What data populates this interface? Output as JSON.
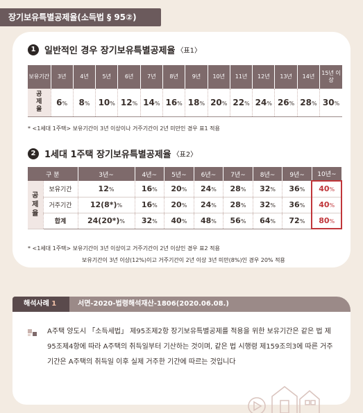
{
  "header": {
    "title": "장기보유특별공제율(소득법 § 95②)"
  },
  "section1": {
    "num": "1",
    "title": "일반적인 경우 장기보유특별공제율",
    "ref": "〈표1〉",
    "table": {
      "corner": "보유기간",
      "periods": [
        "3년",
        "4년",
        "5년",
        "6년",
        "7년",
        "8년",
        "9년",
        "10년",
        "11년",
        "12년",
        "13년",
        "14년",
        "15년 이상"
      ],
      "row_label": "공제율",
      "rates": [
        6,
        8,
        10,
        12,
        14,
        16,
        18,
        20,
        22,
        24,
        26,
        28,
        30
      ],
      "unit": "%"
    },
    "note": "* <1세대 1주택> 보유기간이 3년 이상이나 거주기간이 2년 미만인 경우 표1 적용"
  },
  "section2": {
    "num": "2",
    "title": "1세대 1주택 장기보유특별공제율",
    "ref": "〈표2〉",
    "table": {
      "corner": "구 분",
      "periods": [
        "3년~",
        "4년~",
        "5년~",
        "6년~",
        "7년~",
        "8년~",
        "9년~",
        "10년~"
      ],
      "side_label": "공제율",
      "rows": [
        {
          "label": "보유기간",
          "values": [
            "12",
            "16",
            "20",
            "24",
            "28",
            "32",
            "36",
            "40"
          ]
        },
        {
          "label": "거주기간",
          "values": [
            "12(8*)",
            "16",
            "20",
            "24",
            "28",
            "32",
            "36",
            "40"
          ]
        },
        {
          "label": "합계",
          "values": [
            "24(20*)",
            "32",
            "40",
            "48",
            "56",
            "64",
            "72",
            "80"
          ]
        }
      ],
      "unit": "%"
    },
    "note1": "* <1세대 1주택> 보유기간이 3년 이상이고 거주기간이 2년 이상인 경우 표2 적용",
    "note2": "보유기간이 3년 이상(12%)이고 거주기간이 2년 이상 3년 미만(8%)인 경우 20% 적용"
  },
  "case": {
    "tag_prefix": "해석사례",
    "tag_num": "1",
    "ref": "서면-2020-법령해석재산-1806(2020.06.08.)",
    "body": "A주택 양도시 「소득세법」 제95조제2항 장기보유특별공제를 적용을 위한 보유기간은 같은 법 제95조제4항에 따라 A주택의 취득일부터 기산하는 것이며, 같은 법 시행령 제159조의3에 따른 거주기간은 A주택의 취득일 이후 실제 거주한 기간에 따르는 것입니다"
  },
  "colors": {
    "header_bg": "#6b5a5c",
    "table_head": "#7e6a6b",
    "highlight": "#c0363a",
    "page_bg": "#f3ebe2"
  },
  "icons": [
    "bullet-squares-icon",
    "house-outline-icon"
  ]
}
